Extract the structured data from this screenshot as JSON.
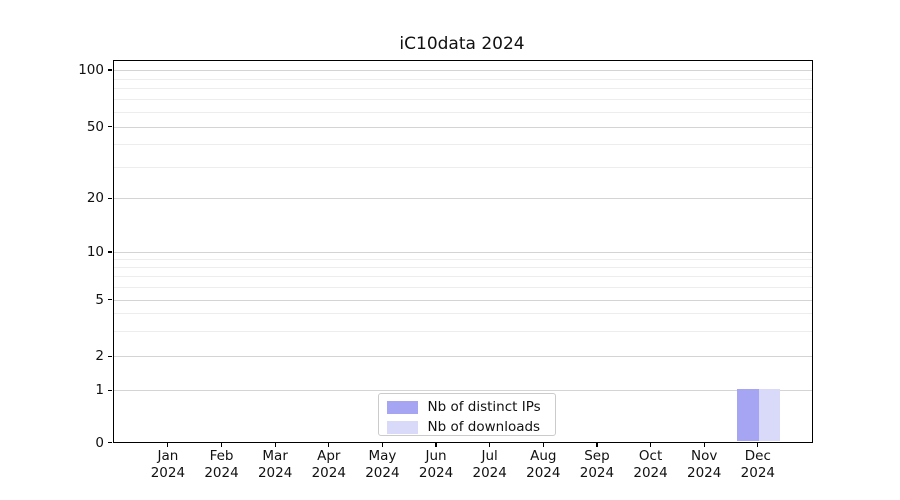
{
  "chart_data": {
    "type": "bar",
    "title": "iC10data 2024",
    "categories": [
      "Jan",
      "Feb",
      "Mar",
      "Apr",
      "May",
      "Jun",
      "Jul",
      "Aug",
      "Sep",
      "Oct",
      "Nov",
      "Dec"
    ],
    "category_year": "2024",
    "series": [
      {
        "name": "Nb of distinct IPs",
        "color": "#a5a5f3",
        "values": [
          0,
          0,
          0,
          0,
          0,
          0,
          0,
          0,
          0,
          0,
          0,
          1
        ]
      },
      {
        "name": "Nb of downloads",
        "color": "#d9d9f9",
        "values": [
          0,
          0,
          0,
          0,
          0,
          0,
          0,
          0,
          0,
          0,
          0,
          1
        ]
      }
    ],
    "yticks": [
      0,
      1,
      2,
      5,
      10,
      20,
      50,
      100
    ],
    "minor_yticks": [
      3,
      4,
      6,
      7,
      8,
      9,
      30,
      40,
      60,
      70,
      80,
      90
    ],
    "ylim": [
      0,
      100
    ],
    "yscale": "symlog",
    "grid": "horizontal",
    "legend_position": "bottom-center",
    "axis_color": "#000000",
    "grid_major_color": "#d4d4d4",
    "grid_minor_color": "#ededed"
  }
}
